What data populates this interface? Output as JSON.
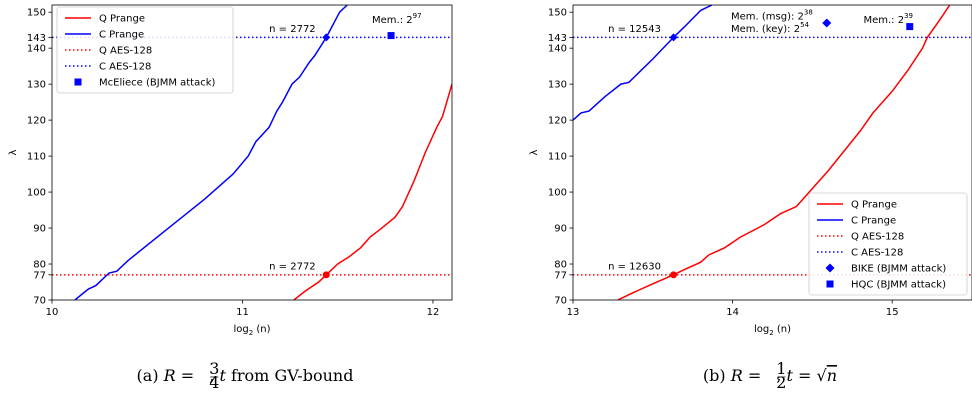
{
  "chart_data": [
    {
      "type": "line",
      "panel": "a",
      "xlabel": "log",
      "xlabel_sub": "2",
      "xlabel_arg": " (n)",
      "ylabel": "λ",
      "xlim": [
        10,
        12.1
      ],
      "ylim": [
        70,
        152
      ],
      "xticks": [
        10,
        11,
        12
      ],
      "yticks": [
        70,
        77,
        80,
        90,
        100,
        110,
        120,
        130,
        140,
        143,
        150
      ],
      "legend_position": "top-left",
      "series": [
        {
          "name": "Q Prange",
          "color": "#ff0000",
          "style": "solid",
          "points": [
            [
              11.27,
              70
            ],
            [
              11.33,
              72.5
            ],
            [
              11.4,
              75
            ],
            [
              11.44,
              77
            ],
            [
              11.5,
              80
            ],
            [
              11.56,
              82
            ],
            [
              11.62,
              84.5
            ],
            [
              11.67,
              87.5
            ],
            [
              11.72,
              89.5
            ],
            [
              11.8,
              93
            ],
            [
              11.84,
              96
            ],
            [
              11.9,
              103
            ],
            [
              11.96,
              111
            ],
            [
              12.02,
              118
            ],
            [
              12.05,
              121
            ],
            [
              12.1,
              130
            ]
          ]
        },
        {
          "name": "C Prange",
          "color": "#0000ff",
          "style": "solid",
          "points": [
            [
              10.12,
              70
            ],
            [
              10.19,
              73
            ],
            [
              10.23,
              74
            ],
            [
              10.3,
              77.5
            ],
            [
              10.34,
              78
            ],
            [
              10.4,
              81
            ],
            [
              10.6,
              89.5
            ],
            [
              10.8,
              98
            ],
            [
              10.95,
              105
            ],
            [
              11.03,
              110
            ],
            [
              11.07,
              114
            ],
            [
              11.14,
              118
            ],
            [
              11.18,
              122.5
            ],
            [
              11.21,
              125
            ],
            [
              11.26,
              130
            ],
            [
              11.3,
              132
            ],
            [
              11.35,
              136
            ],
            [
              11.38,
              138
            ],
            [
              11.44,
              143
            ],
            [
              11.51,
              150
            ],
            [
              11.55,
              152
            ]
          ]
        },
        {
          "name": "Q AES-128",
          "color": "#ff0000",
          "style": "dotted",
          "y": 77
        },
        {
          "name": "C AES-128",
          "color": "#0000ff",
          "style": "dotted",
          "y": 143
        },
        {
          "name": "McEliece (BJMM attack)",
          "color": "#0000ff",
          "style": "square",
          "points": [
            [
              11.78,
              143.5
            ]
          ]
        }
      ],
      "highlight_points": [
        {
          "x": 11.44,
          "y": 77,
          "color": "#ff0000"
        },
        {
          "x": 11.44,
          "y": 143,
          "color": "#0000ff"
        }
      ],
      "annotations": [
        {
          "text": "n = 2772",
          "x": 11.14,
          "y": 78.5
        },
        {
          "text": "n = 2772",
          "x": 11.14,
          "y": 144.5
        },
        {
          "text": "Mem.: 2",
          "sup": "97",
          "x": 11.68,
          "y": 147
        }
      ],
      "caption": {
        "prefix": "(a) ",
        "R": "R",
        "eq": " = ",
        "num": "3",
        "den": "4",
        "sep": ", ",
        "t": "t",
        "rest": " from GV-bound"
      }
    },
    {
      "type": "line",
      "panel": "b",
      "xlabel": "log",
      "xlabel_sub": "2",
      "xlabel_arg": " (n)",
      "ylabel": "λ",
      "xlim": [
        13,
        15.5
      ],
      "ylim": [
        70,
        152
      ],
      "xticks": [
        13,
        14,
        15
      ],
      "yticks": [
        70,
        77,
        80,
        90,
        100,
        110,
        120,
        130,
        140,
        143,
        150
      ],
      "legend_position": "lower-right",
      "series": [
        {
          "name": "Q Prange",
          "color": "#ff0000",
          "style": "solid",
          "points": [
            [
              13.28,
              70
            ],
            [
              13.4,
              72.5
            ],
            [
              13.5,
              74.5
            ],
            [
              13.63,
              77
            ],
            [
              13.7,
              78.5
            ],
            [
              13.8,
              80.5
            ],
            [
              13.85,
              82.5
            ],
            [
              13.95,
              84.5
            ],
            [
              14.05,
              87.5
            ],
            [
              14.2,
              91
            ],
            [
              14.3,
              94
            ],
            [
              14.4,
              96
            ],
            [
              14.45,
              98.5
            ],
            [
              14.6,
              106
            ],
            [
              14.8,
              117
            ],
            [
              14.88,
              122
            ],
            [
              15.0,
              128
            ],
            [
              15.1,
              134
            ],
            [
              15.19,
              140
            ],
            [
              15.22,
              143
            ],
            [
              15.3,
              148
            ],
            [
              15.36,
              152
            ]
          ]
        },
        {
          "name": "C Prange",
          "color": "#0000ff",
          "style": "solid",
          "points": [
            [
              13.0,
              120
            ],
            [
              13.05,
              122
            ],
            [
              13.1,
              122.5
            ],
            [
              13.2,
              126.5
            ],
            [
              13.3,
              130
            ],
            [
              13.35,
              130.5
            ],
            [
              13.5,
              137
            ],
            [
              13.63,
              143
            ],
            [
              13.7,
              146
            ],
            [
              13.8,
              150.5
            ],
            [
              13.87,
              152
            ]
          ]
        },
        {
          "name": "Q AES-128",
          "color": "#ff0000",
          "style": "dotted",
          "y": 77
        },
        {
          "name": "C AES-128",
          "color": "#0000ff",
          "style": "dotted",
          "y": 143
        },
        {
          "name": "BIKE (BJMM attack)",
          "color": "#0000ff",
          "style": "diamond",
          "points": [
            [
              14.59,
              147
            ]
          ]
        },
        {
          "name": "HQC (BJMM attack)",
          "color": "#0000ff",
          "style": "square",
          "points": [
            [
              15.11,
              146
            ]
          ]
        }
      ],
      "highlight_points": [
        {
          "x": 13.63,
          "y": 77,
          "color": "#ff0000"
        },
        {
          "x": 13.63,
          "y": 143,
          "color": "#0000ff"
        }
      ],
      "annotations": [
        {
          "text": "n = 12630",
          "x": 13.22,
          "y": 78.5
        },
        {
          "text": "n = 12543",
          "x": 13.22,
          "y": 144.5
        },
        {
          "text": "Mem. (msg): 2",
          "sup": "38",
          "x": 13.99,
          "y": 148
        },
        {
          "text": "Mem. (key): 2",
          "sup": "54",
          "x": 13.99,
          "y": 144.5
        },
        {
          "text": "Mem.: 2",
          "sup": "39",
          "x": 14.82,
          "y": 147
        }
      ],
      "caption": {
        "prefix": "(b) ",
        "R": "R",
        "eq": " = ",
        "num": "1",
        "den": "2",
        "sep": ", ",
        "t": "t",
        "rest": " = ",
        "sqrt": "n"
      }
    }
  ]
}
